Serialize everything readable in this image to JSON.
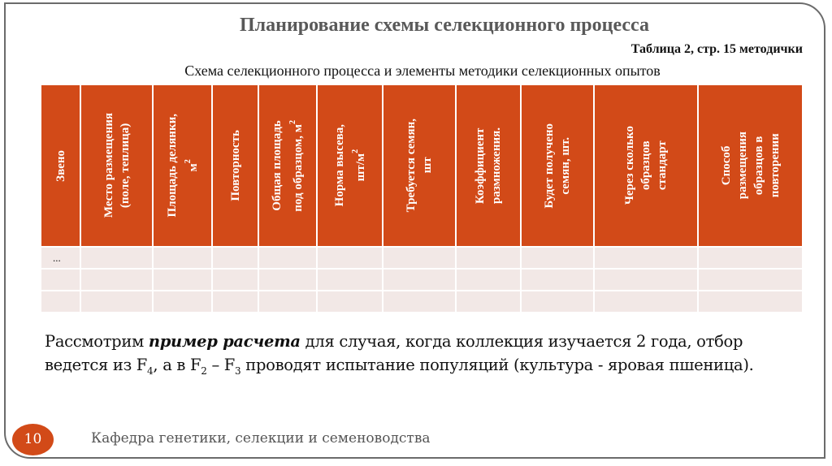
{
  "title": "Планирование схемы селекционного процесса",
  "table_ref": "Таблица 2, стр. 15 методички",
  "subtitle": "Схема селекционного процесса и элементы методики селекционных опытов",
  "table": {
    "headers": [
      {
        "lines": [
          "Звено"
        ],
        "sup": ""
      },
      {
        "lines": [
          "Место размещения",
          "(поле, теплица)"
        ],
        "sup": ""
      },
      {
        "lines": [
          "Площадь делянки,",
          "м"
        ],
        "sup": "2"
      },
      {
        "lines": [
          "Повторность"
        ],
        "sup": ""
      },
      {
        "lines": [
          "Общая площадь",
          "под образцом, м"
        ],
        "sup": "2"
      },
      {
        "lines": [
          "Норма высева,",
          "шт/м"
        ],
        "sup": "2"
      },
      {
        "lines": [
          "Требуется семян,",
          "шт"
        ],
        "sup": ""
      },
      {
        "lines": [
          "Коэффициент",
          "размножения."
        ],
        "sup": ""
      },
      {
        "lines": [
          "Будет получено",
          "семян, шт."
        ],
        "sup": ""
      },
      {
        "lines": [
          "Через сколько",
          "образцов",
          "стандарт"
        ],
        "sup": ""
      },
      {
        "lines": [
          "Способ",
          "размещения",
          "образцов в",
          "повторении"
        ],
        "sup": ""
      }
    ],
    "rows": [
      [
        "...",
        "",
        "",
        "",
        "",
        "",
        "",
        "",
        "",
        "",
        ""
      ],
      [
        "",
        "",
        "",
        "",
        "",
        "",
        "",
        "",
        "",
        "",
        ""
      ],
      [
        "",
        "",
        "",
        "",
        "",
        "",
        "",
        "",
        "",
        "",
        ""
      ]
    ]
  },
  "paragraph": {
    "p1": "Рассмотрим ",
    "bold": "пример расчета",
    "p2": " для случая, когда коллекция изучается 2 года, отбор",
    "p3": "ведется из F",
    "s1": "4",
    "p4": ", а в F",
    "s2": "2",
    "p5": " – F",
    "s3": "3",
    "p6": " проводят испытание популяций (культура - яровая пшеница)."
  },
  "footer": {
    "page_number": "10",
    "text": "Кафедра генетики, селекции и семеноводства"
  },
  "colors": {
    "accent": "#D24A18",
    "row_bg": "#F2E8E6",
    "title": "#595959"
  }
}
